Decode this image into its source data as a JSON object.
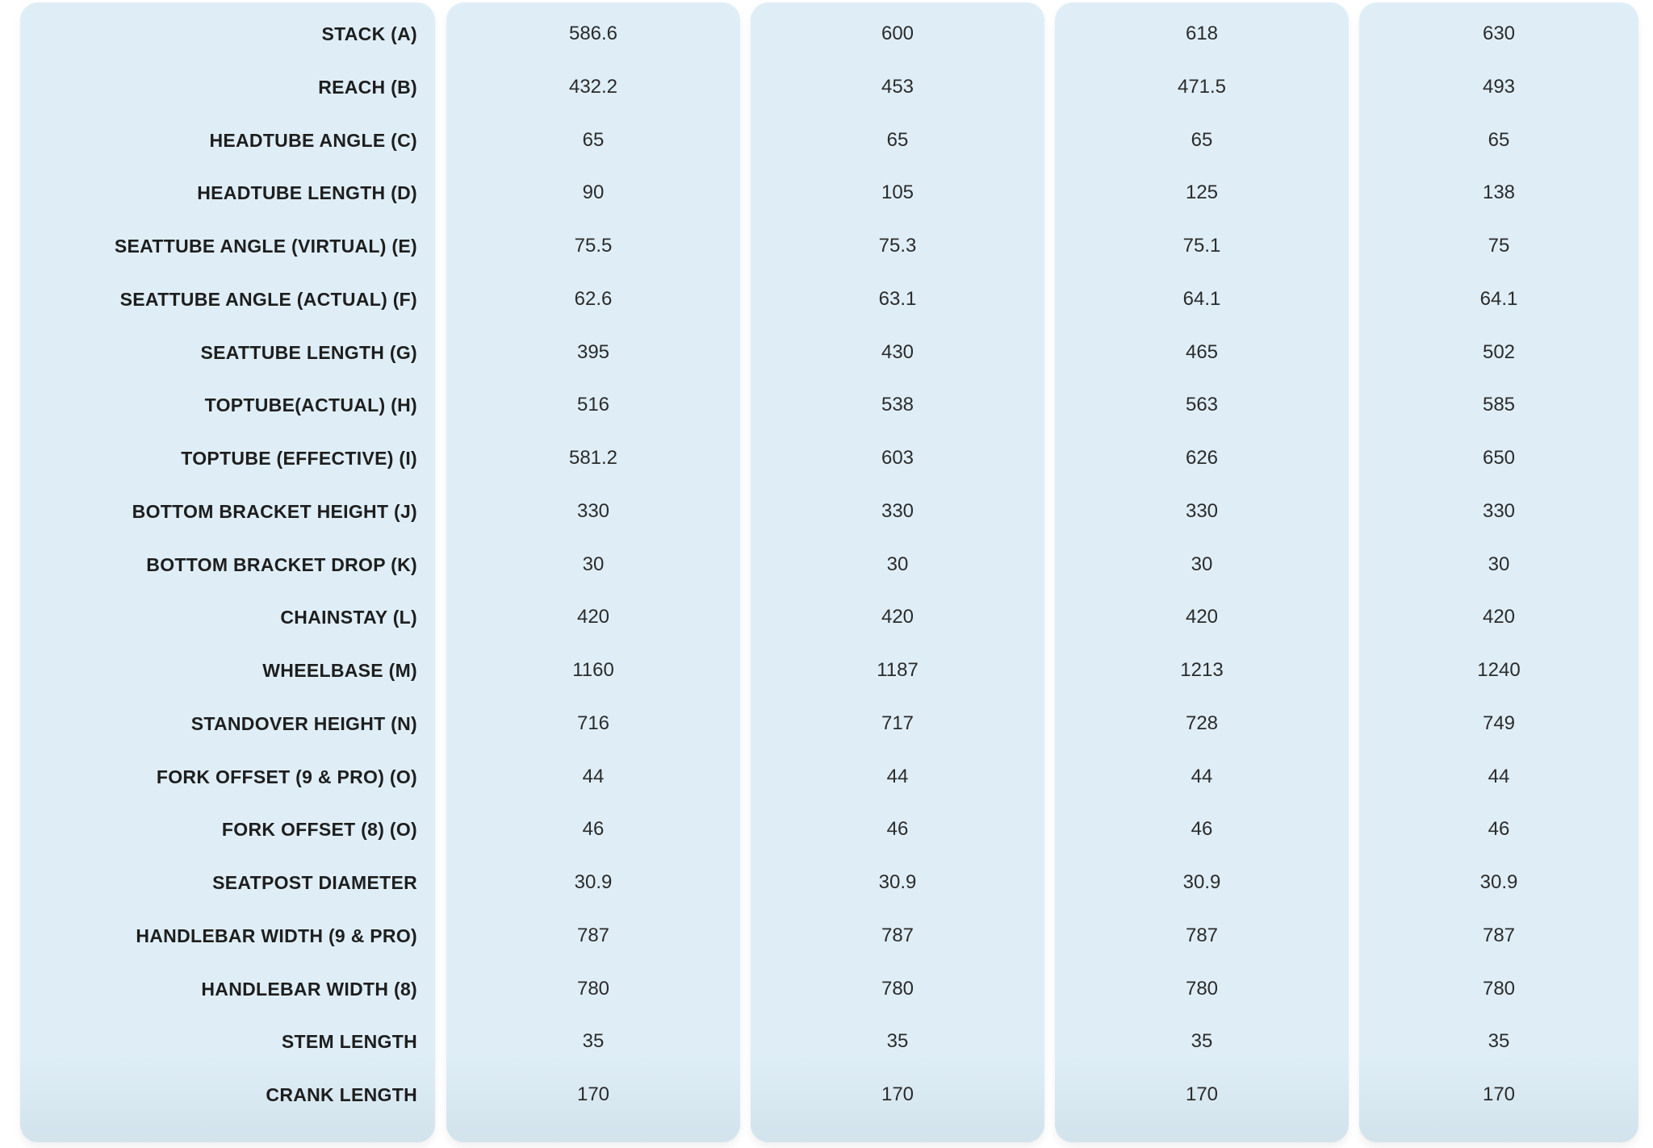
{
  "colors": {
    "column_bg": "#dfeef6",
    "text": "#2b2b2b",
    "page_bg": "#ffffff"
  },
  "rows": [
    {
      "label": "STACK (A)",
      "values": [
        "586.6",
        "600",
        "618",
        "630"
      ]
    },
    {
      "label": "REACH (B)",
      "values": [
        "432.2",
        "453",
        "471.5",
        "493"
      ]
    },
    {
      "label": "HEADTUBE ANGLE (C)",
      "values": [
        "65",
        "65",
        "65",
        "65"
      ]
    },
    {
      "label": "HEADTUBE LENGTH (D)",
      "values": [
        "90",
        "105",
        "125",
        "138"
      ]
    },
    {
      "label": "SEATTUBE ANGLE (VIRTUAL) (E)",
      "values": [
        "75.5",
        "75.3",
        "75.1",
        "75"
      ]
    },
    {
      "label": "SEATTUBE ANGLE (ACTUAL) (F)",
      "values": [
        "62.6",
        "63.1",
        "64.1",
        "64.1"
      ]
    },
    {
      "label": "SEATTUBE LENGTH (G)",
      "values": [
        "395",
        "430",
        "465",
        "502"
      ]
    },
    {
      "label": "TOPTUBE(ACTUAL) (H)",
      "values": [
        "516",
        "538",
        "563",
        "585"
      ]
    },
    {
      "label": "TOPTUBE (EFFECTIVE) (I)",
      "values": [
        "581.2",
        "603",
        "626",
        "650"
      ]
    },
    {
      "label": "BOTTOM BRACKET HEIGHT (J)",
      "values": [
        "330",
        "330",
        "330",
        "330"
      ]
    },
    {
      "label": "BOTTOM BRACKET DROP (K)",
      "values": [
        "30",
        "30",
        "30",
        "30"
      ]
    },
    {
      "label": "CHAINSTAY (L)",
      "values": [
        "420",
        "420",
        "420",
        "420"
      ]
    },
    {
      "label": "WHEELBASE (M)",
      "values": [
        "1160",
        "1187",
        "1213",
        "1240"
      ]
    },
    {
      "label": "STANDOVER HEIGHT (N)",
      "values": [
        "716",
        "717",
        "728",
        "749"
      ]
    },
    {
      "label": "FORK OFFSET (9 & PRO) (O)",
      "values": [
        "44",
        "44",
        "44",
        "44"
      ]
    },
    {
      "label": "FORK OFFSET (8) (O)",
      "values": [
        "46",
        "46",
        "46",
        "46"
      ]
    },
    {
      "label": "SEATPOST DIAMETER",
      "values": [
        "30.9",
        "30.9",
        "30.9",
        "30.9"
      ]
    },
    {
      "label": "HANDLEBAR WIDTH (9 & PRO)",
      "values": [
        "787",
        "787",
        "787",
        "787"
      ]
    },
    {
      "label": "HANDLEBAR WIDTH (8)",
      "values": [
        "780",
        "780",
        "780",
        "780"
      ]
    },
    {
      "label": "STEM LENGTH",
      "values": [
        "35",
        "35",
        "35",
        "35"
      ]
    },
    {
      "label": "CRANK LENGTH",
      "values": [
        "170",
        "170",
        "170",
        "170"
      ]
    }
  ]
}
